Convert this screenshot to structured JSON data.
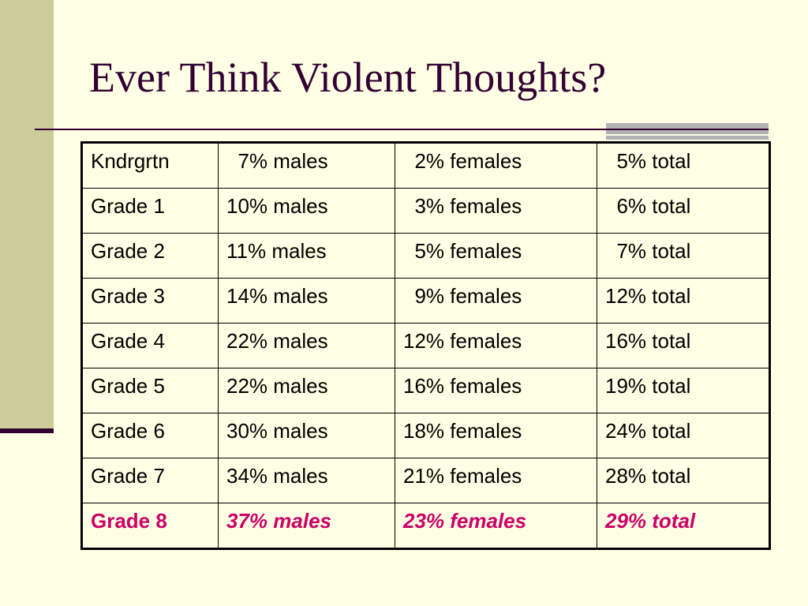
{
  "slide": {
    "title": "Ever Think Violent Thoughts?",
    "colors": {
      "background": "#ffffe5",
      "title": "#330033",
      "side_bar": "#cccc9a",
      "highlight_row": "#cc0066"
    }
  },
  "table": {
    "rows": [
      {
        "grade": "Kndrgrtn",
        "males": "  7% males",
        "females": "  2% females",
        "total": "  5% total"
      },
      {
        "grade": "Grade 1",
        "males": "10% males",
        "females": "  3% females",
        "total": "  6% total"
      },
      {
        "grade": "Grade 2",
        "males": "11% males",
        "females": "  5% females",
        "total": "  7% total"
      },
      {
        "grade": "Grade 3",
        "males": "14% males",
        "females": "  9% females",
        "total": "12% total"
      },
      {
        "grade": "Grade 4",
        "males": "22% males",
        "females": "12% females",
        "total": "16% total"
      },
      {
        "grade": "Grade 5",
        "males": "22% males",
        "females": "16% females",
        "total": "19% total"
      },
      {
        "grade": "Grade 6",
        "males": "30% males",
        "females": "18% females",
        "total": "24% total"
      },
      {
        "grade": "Grade 7",
        "males": "34% males",
        "females": "21% females",
        "total": "28% total"
      },
      {
        "grade": "Grade 8",
        "males": "37% males",
        "females": "23% females",
        "total": "29% total"
      }
    ]
  }
}
